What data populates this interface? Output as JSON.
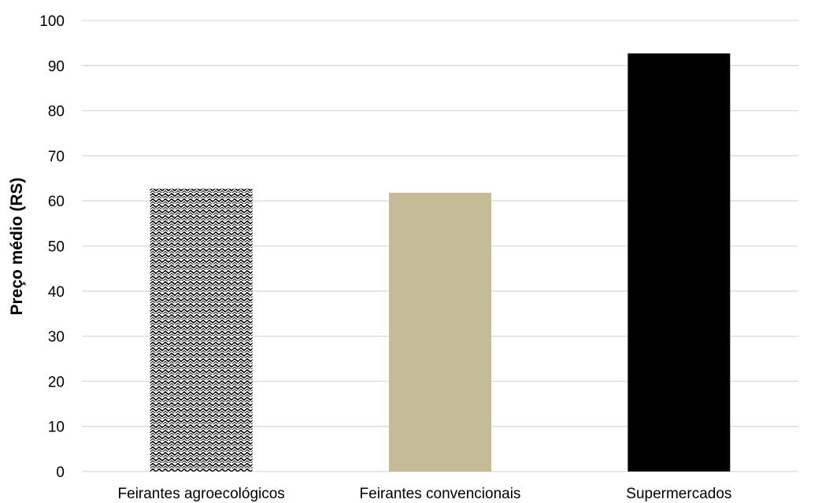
{
  "chart_data": {
    "type": "bar",
    "title": "",
    "xlabel": "",
    "ylabel": "Preço médio (RS)",
    "categories": [
      "Feirantes agroecológicos",
      "Feirantes convencionais",
      "Supermercados"
    ],
    "values": [
      62.7,
      61.8,
      92.7
    ],
    "ylim": [
      0,
      100
    ],
    "yticks": [
      0,
      10,
      20,
      30,
      40,
      50,
      60,
      70,
      80,
      90,
      100
    ],
    "grid": true,
    "legend": "none",
    "bar_styles": [
      {
        "fill": "pattern-wave",
        "color": "#000000"
      },
      {
        "fill": "solid",
        "color": "#c4bc97"
      },
      {
        "fill": "solid",
        "color": "#000000"
      }
    ]
  }
}
